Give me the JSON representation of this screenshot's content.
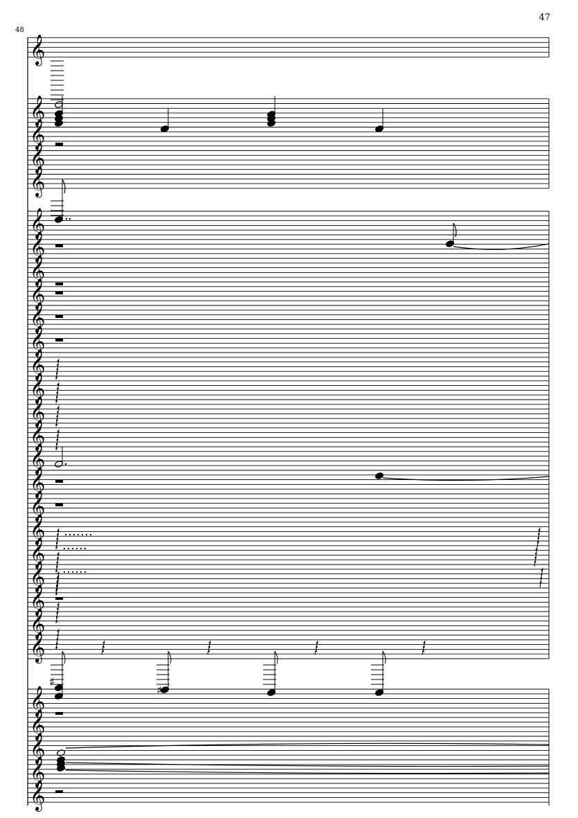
{
  "page": {
    "page_number": "47",
    "measure_number": "48"
  },
  "score": {
    "clef": "treble-clef-icon",
    "ink_color": "#000000"
  }
}
